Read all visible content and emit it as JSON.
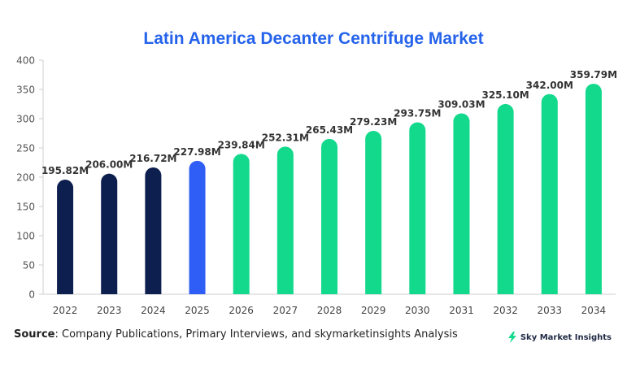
{
  "chart_data": {
    "type": "bar",
    "title": "Latin America Decanter Centrifuge Market",
    "categories": [
      "2022",
      "2023",
      "2024",
      "2025",
      "2026",
      "2027",
      "2028",
      "2029",
      "2030",
      "2031",
      "2032",
      "2033",
      "2034"
    ],
    "values": [
      195.82,
      206.0,
      216.72,
      227.98,
      239.84,
      252.31,
      265.43,
      279.23,
      293.75,
      309.03,
      325.1,
      342.0,
      359.79
    ],
    "data_labels": [
      "195.82M",
      "206.00M",
      "216.72M",
      "227.98M",
      "239.84M",
      "252.31M",
      "265.43M",
      "279.23M",
      "293.75M",
      "309.03M",
      "325.10M",
      "342.00M",
      "359.79M"
    ],
    "bar_colors": [
      "#0d1f4f",
      "#0d1f4f",
      "#0d1f4f",
      "#2f5ef6",
      "#12d98c",
      "#12d98c",
      "#12d98c",
      "#12d98c",
      "#12d98c",
      "#12d98c",
      "#12d98c",
      "#12d98c",
      "#12d98c"
    ],
    "ylim": [
      0,
      400
    ],
    "yticks": [
      0,
      50,
      100,
      150,
      200,
      250,
      300,
      350,
      400
    ],
    "xlabel": "",
    "ylabel": "",
    "grid": false
  },
  "footer": {
    "source_label": "Source",
    "source_text": ": Company Publications, Primary Interviews, and skymarketinsights Analysis",
    "brand_name": "Sky Market Insights",
    "brand_icon": "lightning-bolt-icon"
  }
}
